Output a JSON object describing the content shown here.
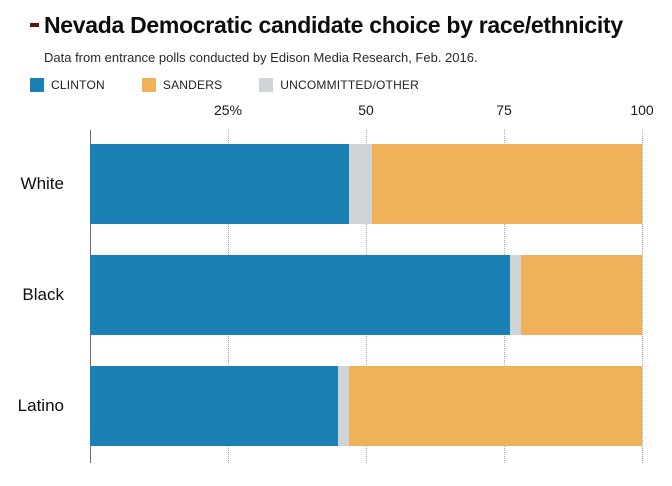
{
  "header": {
    "title": "Nevada Democratic candidate choice by race/ethnicity",
    "subtitle": "Data from entrance polls conducted by Edison Media Research, Feb. 2016."
  },
  "legend": {
    "items": [
      {
        "label": "CLINTON",
        "color": "#1b81b5"
      },
      {
        "label": "SANDERS",
        "color": "#efb25b"
      },
      {
        "label": "UNCOMMITTED/OTHER",
        "color": "#cfd4d7"
      }
    ]
  },
  "chart_data": {
    "type": "bar",
    "orientation": "horizontal",
    "stacked": true,
    "title": "Nevada Democratic candidate choice by race/ethnicity",
    "subtitle": "Data from entrance polls conducted by Edison Media Research, Feb. 2016.",
    "categories": [
      "White",
      "Black",
      "Latino"
    ],
    "series": [
      {
        "name": "CLINTON",
        "color": "#1b81b5",
        "values": [
          47,
          76,
          45
        ]
      },
      {
        "name": "UNCOMMITTED/OTHER",
        "color": "#cfd4d7",
        "values": [
          4,
          2,
          2
        ]
      },
      {
        "name": "SANDERS",
        "color": "#efb25b",
        "values": [
          49,
          22,
          53
        ]
      }
    ],
    "x_ticks": [
      {
        "label": "25%",
        "value": 25
      },
      {
        "label": "50",
        "value": 50
      },
      {
        "label": "75",
        "value": 75
      },
      {
        "label": "100",
        "value": 100
      }
    ],
    "xlim": [
      0,
      100
    ],
    "grid": "dotted-vertical",
    "legend_position": "top"
  },
  "colors": {
    "axis": "#6a6a6a",
    "gridline": "#a9a9a9",
    "title_marker": "#5f140c",
    "background": "#ffffff"
  }
}
